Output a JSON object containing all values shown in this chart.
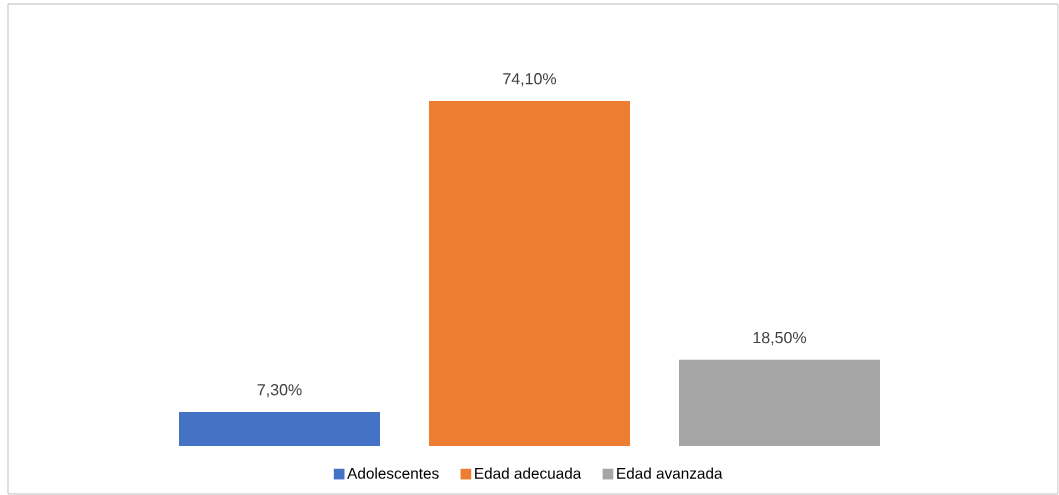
{
  "chart_data": {
    "type": "bar",
    "categories": [
      null
    ],
    "legend": "bottom",
    "series": [
      {
        "name": "Adolescentes",
        "color": "#4472c4",
        "values": [
          7.3
        ],
        "value_labels": [
          "7,30%"
        ]
      },
      {
        "name": "Edad adecuada",
        "color": "#ed7d31",
        "values": [
          74.1
        ],
        "value_labels": [
          "74,10%"
        ]
      },
      {
        "name": "Edad avanzada",
        "color": "#a5a5a5",
        "values": [
          18.5
        ],
        "value_labels": [
          "18,50%"
        ]
      }
    ]
  }
}
